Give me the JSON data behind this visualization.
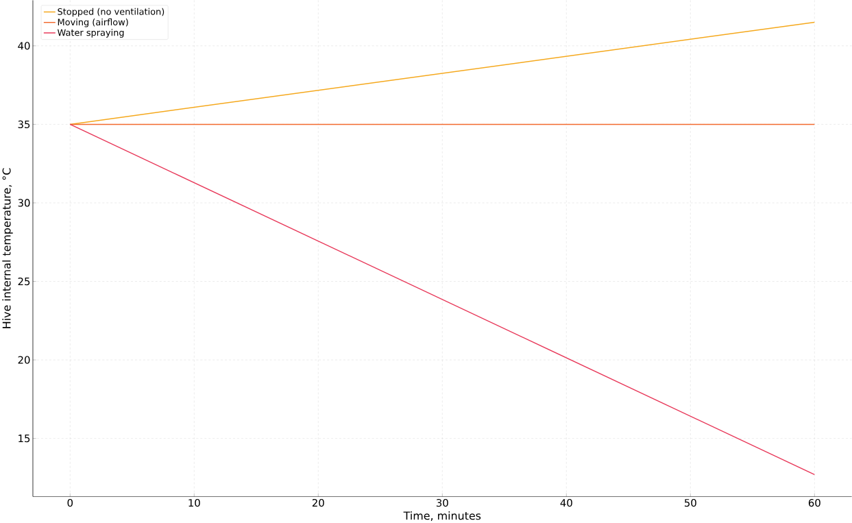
{
  "chart_data": {
    "type": "line",
    "xlabel": "Time, minutes",
    "ylabel": "Hive internal temperature, °C",
    "x": [
      0,
      60
    ],
    "series": [
      {
        "name": "Stopped (no ventilation)",
        "color": "#f5a81c",
        "values": [
          35,
          41.5
        ]
      },
      {
        "name": "Moving (airflow)",
        "color": "#f26a2e",
        "values": [
          35,
          35
        ]
      },
      {
        "name": "Water spraying",
        "color": "#e8395a",
        "values": [
          35,
          12.7
        ]
      }
    ],
    "xlim": [
      -3,
      63
    ],
    "ylim": [
      11.3,
      42.9
    ],
    "xticks": [
      0,
      10,
      20,
      30,
      40,
      50,
      60
    ],
    "yticks": [
      15,
      20,
      25,
      30,
      35,
      40
    ],
    "grid": true,
    "legend": "top left",
    "marker": "none",
    "line_style": "solid"
  }
}
